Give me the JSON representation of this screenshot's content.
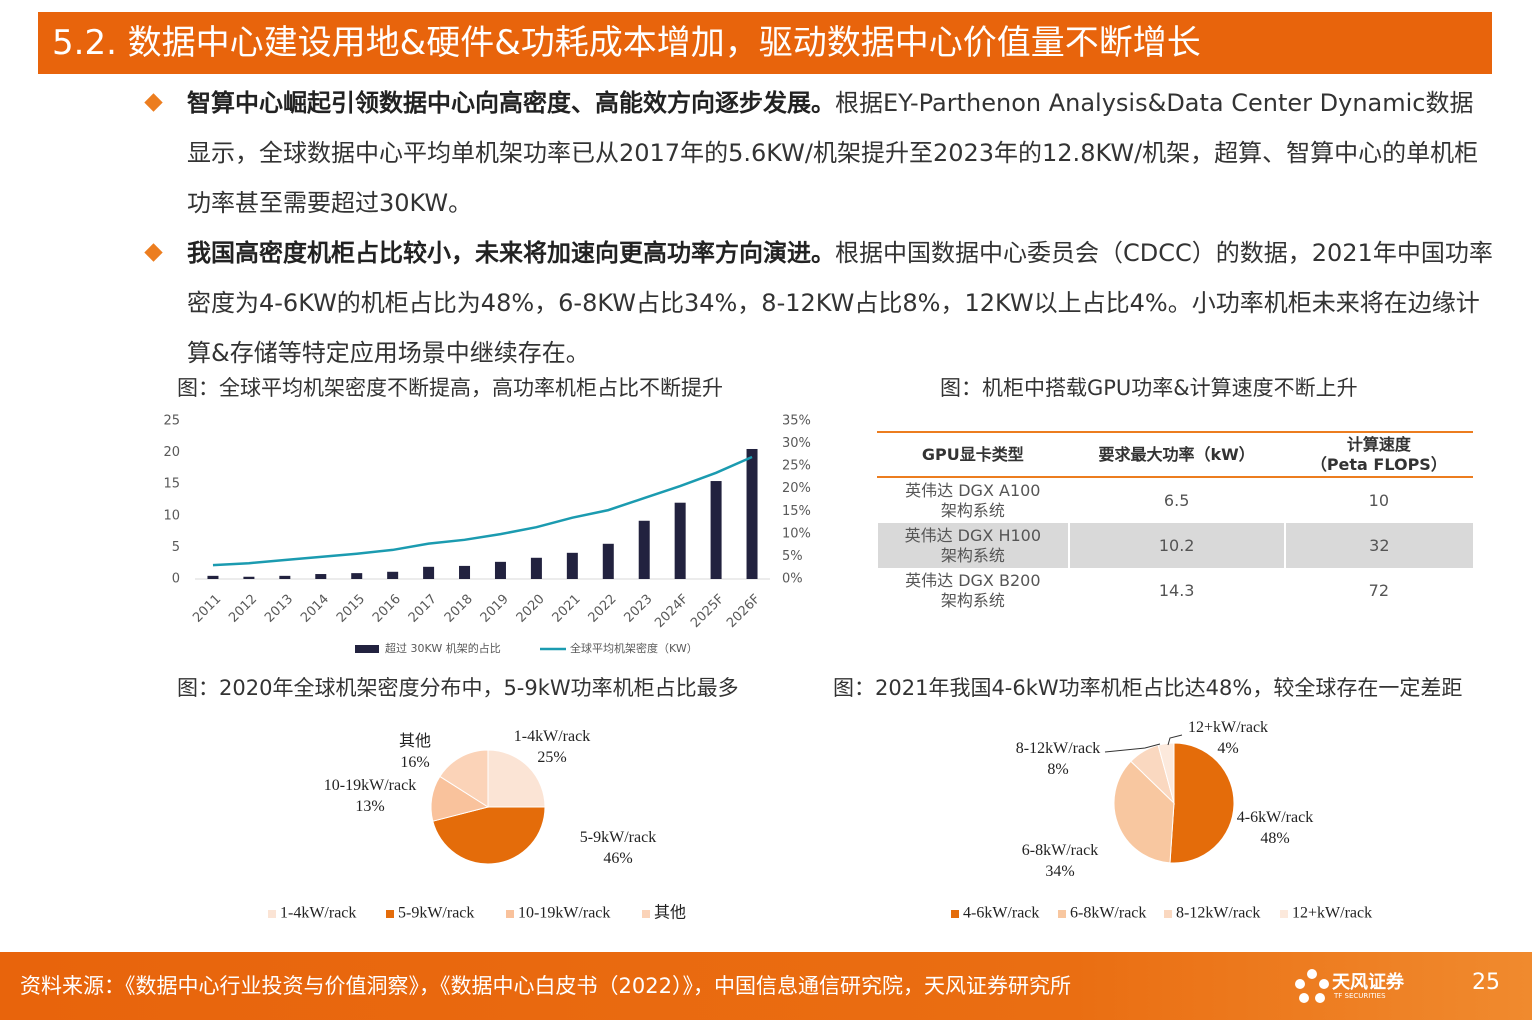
{
  "header": {
    "title": "5.2. 数据中心建设用地&硬件&功耗成本增加，驱动数据中心价值量不断增长"
  },
  "bullets": [
    {
      "bold": "智算中心崛起引领数据中心向高密度、高能效方向逐步发展。",
      "text": "根据EY-Parthenon Analysis&Data Center Dynamic数据显示，全球数据中心平均单机架功率已从2017年的5.6KW/机架提升至2023年的12.8KW/机架，超算、智算中心的单机柜功率甚至需要超过30KW。"
    },
    {
      "bold": "我国高密度机柜占比较小，未来将加速向更高功率方向演进。",
      "text": "根据中国数据中心委员会（CDCC）的数据，2021年中国功率密度为4-6KW的机柜占比为48%，6-8KW占比34%，8-12KW占比8%，12KW以上占比4%。小功率机柜未来将在边缘计算&存储等特定应用场景中继续存在。"
    }
  ],
  "chart_data": [
    {
      "type": "combo",
      "title": "图：全球平均机架密度不断提高，高功率机柜占比不断提升",
      "categories": [
        "2011",
        "2012",
        "2013",
        "2014",
        "2015",
        "2016",
        "2017",
        "2018",
        "2019",
        "2020",
        "2021",
        "2022",
        "2023",
        "2024F",
        "2025F",
        "2026F"
      ],
      "series": [
        {
          "name": "超过 30KW 机架的占比",
          "type": "bar",
          "axis": "y2",
          "color": "#22223f",
          "values": [
            0.7,
            0.5,
            0.7,
            1.1,
            1.3,
            1.6,
            2.7,
            2.9,
            3.8,
            4.7,
            5.8,
            7.8,
            12.9,
            16.9,
            21.7,
            28.8
          ]
        },
        {
          "name": "全球平均机架密度（KW）",
          "type": "line",
          "axis": "y",
          "color": "#1b9bb0",
          "values": [
            2.2,
            2.5,
            3.0,
            3.5,
            4.0,
            4.6,
            5.6,
            6.2,
            7.1,
            8.2,
            9.7,
            10.9,
            12.8,
            14.7,
            16.8,
            19.3
          ]
        }
      ],
      "ylim": [
        0,
        25
      ],
      "yticks": [
        0,
        5,
        10,
        15,
        20,
        25
      ],
      "y2lim": [
        0,
        35
      ],
      "y2ticks": [
        {
          "value": 0,
          "label": "0%"
        },
        {
          "value": 5,
          "label": "5%"
        },
        {
          "value": 10,
          "label": "10%"
        },
        {
          "value": 15,
          "label": "15%"
        },
        {
          "value": 20,
          "label": "20%"
        },
        {
          "value": 25,
          "label": "25%"
        },
        {
          "value": 30,
          "label": "30%"
        },
        {
          "value": 35,
          "label": "35%"
        }
      ],
      "grid": false,
      "legend": "bottom"
    },
    {
      "type": "pie",
      "title": "图：2020年全球机架密度分布中，5-9kW功率机柜占比最多",
      "categories": [
        "1-4kW/rack",
        "5-9kW/rack",
        "10-19kW/rack",
        "其他"
      ],
      "values": [
        25,
        46,
        13,
        16
      ],
      "value_labels": [
        "25%",
        "46%",
        "13%",
        "16%"
      ],
      "colors": [
        "#fbe4d5",
        "#e46c0a",
        "#f9c29c",
        "#fbd3b8"
      ],
      "legend": "bottom"
    },
    {
      "type": "pie",
      "title": "图：2021年我国4-6kW功率机柜占比达48%，较全球存在一定差距",
      "categories": [
        "4-6kW/rack",
        "6-8kW/rack",
        "8-12kW/rack",
        "12+kW/rack"
      ],
      "values": [
        48,
        34,
        8,
        4
      ],
      "value_labels": [
        "48%",
        "34%",
        "8%",
        "4%"
      ],
      "colors": [
        "#e46c0a",
        "#f8c7a0",
        "#fad8c0",
        "#fce9dc"
      ],
      "legend": "bottom"
    }
  ],
  "table": {
    "title": "图：机柜中搭载GPU功率&计算速度不断上升",
    "header": [
      "GPU显卡类型",
      "要求最大功率（kW）",
      "计算速度\n（Peta FLOPS）"
    ],
    "rows": [
      [
        "英伟达 DGX A100\n架构系统",
        "6.5",
        "10"
      ],
      [
        "英伟达 DGX H100\n架构系统",
        "10.2",
        "32"
      ],
      [
        "英伟达 DGX B200\n架构系统",
        "14.3",
        "72"
      ]
    ]
  },
  "footer": {
    "source": "资料来源：《数据中心行业投资与价值洞察》，《数据中心白皮书（2022）》，中国信息通信研究院，天风证券研究所",
    "logo": "天风证券",
    "logo_en": "TF SECURITIES",
    "page": "25"
  }
}
